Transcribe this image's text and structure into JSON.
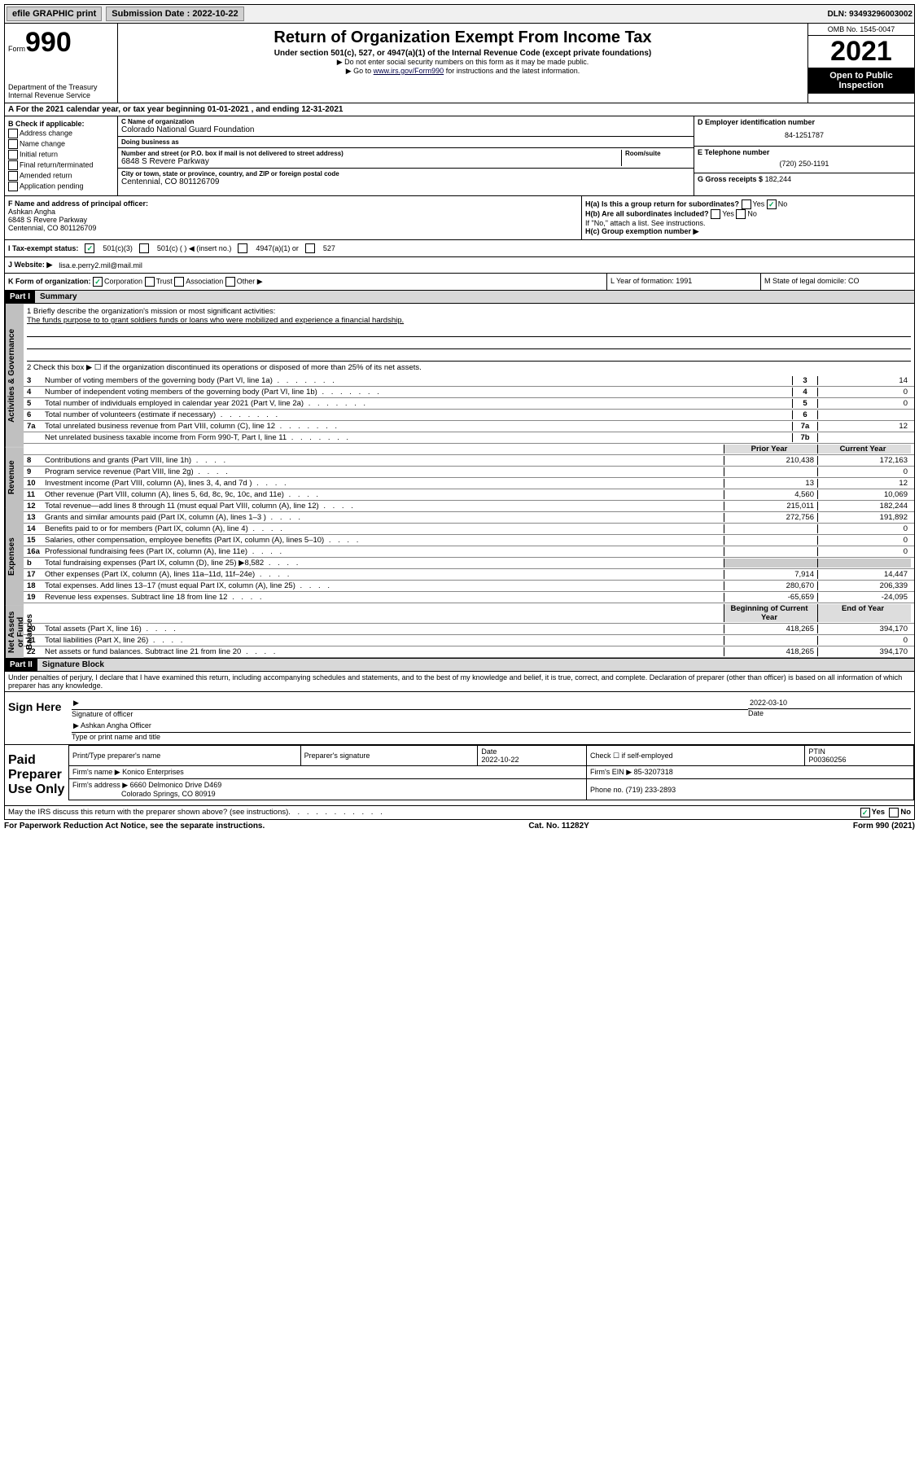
{
  "topbar": {
    "efile": "efile GRAPHIC print",
    "sub_label": "Submission Date : 2022-10-22",
    "dln": "DLN: 93493296003002"
  },
  "header": {
    "form_small": "Form",
    "form_big": "990",
    "title": "Return of Organization Exempt From Income Tax",
    "sub1": "Under section 501(c), 527, or 4947(a)(1) of the Internal Revenue Code (except private foundations)",
    "sub2": "▶ Do not enter social security numbers on this form as it may be made public.",
    "sub3_pre": "▶ Go to ",
    "sub3_link": "www.irs.gov/Form990",
    "sub3_post": " for instructions and the latest information.",
    "omb": "OMB No. 1545-0047",
    "year": "2021",
    "open": "Open to Public Inspection",
    "dept": "Department of the Treasury\nInternal Revenue Service"
  },
  "rowA": "A For the 2021 calendar year, or tax year beginning 01-01-2021   , and ending 12-31-2021",
  "colB": {
    "label": "B Check if applicable:",
    "items": [
      "Address change",
      "Name change",
      "Initial return",
      "Final return/terminated",
      "Amended return",
      "Application pending"
    ]
  },
  "colC": {
    "name_lbl": "C Name of organization",
    "name": "Colorado National Guard Foundation",
    "dba_lbl": "Doing business as",
    "dba": "",
    "street_lbl": "Number and street (or P.O. box if mail is not delivered to street address)",
    "room_lbl": "Room/suite",
    "street": "6848 S Revere Parkway",
    "city_lbl": "City or town, state or province, country, and ZIP or foreign postal code",
    "city": "Centennial, CO  801126709"
  },
  "colD": {
    "ein_lbl": "D Employer identification number",
    "ein": "84-1251787",
    "tel_lbl": "E Telephone number",
    "tel": "(720) 250-1191",
    "gross_lbl": "G Gross receipts $",
    "gross": "182,244"
  },
  "rowF": {
    "lbl": "F Name and address of principal officer:",
    "line1": "Ashkan Angha",
    "line2": "6848 S Revere Parkway",
    "line3": "Centennial, CO  801126709"
  },
  "rowH": {
    "ha": "H(a)  Is this a group return for subordinates?",
    "ha_yes": "Yes",
    "ha_no": "No",
    "hb": "H(b)  Are all subordinates included?",
    "hb_note": "If \"No,\" attach a list. See instructions.",
    "hc": "H(c)  Group exemption number ▶"
  },
  "rowI": {
    "lbl": "I   Tax-exempt status:",
    "opts": [
      "501(c)(3)",
      "501(c) (  ) ◀ (insert no.)",
      "4947(a)(1) or",
      "527"
    ]
  },
  "rowJ": {
    "lbl": "J   Website: ▶",
    "val": "lisa.e.perry2.mil@mail.mil"
  },
  "rowK": {
    "lbl": "K Form of organization:",
    "opts": [
      "Corporation",
      "Trust",
      "Association",
      "Other ▶"
    ],
    "L": "L Year of formation: 1991",
    "M": "M State of legal domicile: CO"
  },
  "partI": {
    "hdr": "Part I",
    "title": "Summary"
  },
  "mission": {
    "q1": "1   Briefly describe the organization's mission or most significant activities:",
    "text": "The funds purpose to to grant soldiers funds or loans who were mobilized and experience a financial hardship.",
    "q2": "2   Check this box ▶ ☐  if the organization discontinued its operations or disposed of more than 25% of its net assets."
  },
  "lines_gov": [
    {
      "n": "3",
      "d": "Number of voting members of the governing body (Part VI, line 1a)",
      "b": "3",
      "v": "14"
    },
    {
      "n": "4",
      "d": "Number of independent voting members of the governing body (Part VI, line 1b)",
      "b": "4",
      "v": "0"
    },
    {
      "n": "5",
      "d": "Total number of individuals employed in calendar year 2021 (Part V, line 2a)",
      "b": "5",
      "v": "0"
    },
    {
      "n": "6",
      "d": "Total number of volunteers (estimate if necessary)",
      "b": "6",
      "v": ""
    },
    {
      "n": "7a",
      "d": "Total unrelated business revenue from Part VIII, column (C), line 12",
      "b": "7a",
      "v": "12"
    },
    {
      "n": "",
      "d": "Net unrelated business taxable income from Form 990-T, Part I, line 11",
      "b": "7b",
      "v": ""
    }
  ],
  "col_hdr": {
    "b": "b",
    "py": "Prior Year",
    "cy": "Current Year"
  },
  "lines_rev": [
    {
      "n": "8",
      "d": "Contributions and grants (Part VIII, line 1h)",
      "py": "210,438",
      "cy": "172,163"
    },
    {
      "n": "9",
      "d": "Program service revenue (Part VIII, line 2g)",
      "py": "",
      "cy": "0"
    },
    {
      "n": "10",
      "d": "Investment income (Part VIII, column (A), lines 3, 4, and 7d )",
      "py": "13",
      "cy": "12"
    },
    {
      "n": "11",
      "d": "Other revenue (Part VIII, column (A), lines 5, 6d, 8c, 9c, 10c, and 11e)",
      "py": "4,560",
      "cy": "10,069"
    },
    {
      "n": "12",
      "d": "Total revenue—add lines 8 through 11 (must equal Part VIII, column (A), line 12)",
      "py": "215,011",
      "cy": "182,244"
    }
  ],
  "lines_exp": [
    {
      "n": "13",
      "d": "Grants and similar amounts paid (Part IX, column (A), lines 1–3 )",
      "py": "272,756",
      "cy": "191,892"
    },
    {
      "n": "14",
      "d": "Benefits paid to or for members (Part IX, column (A), line 4)",
      "py": "",
      "cy": "0"
    },
    {
      "n": "15",
      "d": "Salaries, other compensation, employee benefits (Part IX, column (A), lines 5–10)",
      "py": "",
      "cy": "0"
    },
    {
      "n": "16a",
      "d": "Professional fundraising fees (Part IX, column (A), line 11e)",
      "py": "",
      "cy": "0"
    },
    {
      "n": "b",
      "d": "Total fundraising expenses (Part IX, column (D), line 25) ▶8,582",
      "py": "grey",
      "cy": "grey"
    },
    {
      "n": "17",
      "d": "Other expenses (Part IX, column (A), lines 11a–11d, 11f–24e)",
      "py": "7,914",
      "cy": "14,447"
    },
    {
      "n": "18",
      "d": "Total expenses. Add lines 13–17 (must equal Part IX, column (A), line 25)",
      "py": "280,670",
      "cy": "206,339"
    },
    {
      "n": "19",
      "d": "Revenue less expenses. Subtract line 18 from line 12",
      "py": "-65,659",
      "cy": "-24,095"
    }
  ],
  "col_hdr2": {
    "py": "Beginning of Current Year",
    "cy": "End of Year"
  },
  "lines_net": [
    {
      "n": "20",
      "d": "Total assets (Part X, line 16)",
      "py": "418,265",
      "cy": "394,170"
    },
    {
      "n": "21",
      "d": "Total liabilities (Part X, line 26)",
      "py": "",
      "cy": "0"
    },
    {
      "n": "22",
      "d": "Net assets or fund balances. Subtract line 21 from line 20",
      "py": "418,265",
      "cy": "394,170"
    }
  ],
  "vtabs": {
    "gov": "Activities & Governance",
    "rev": "Revenue",
    "exp": "Expenses",
    "net": "Net Assets or Fund Balances"
  },
  "partII": {
    "hdr": "Part II",
    "title": "Signature Block"
  },
  "penalty": "Under penalties of perjury, I declare that I have examined this return, including accompanying schedules and statements, and to the best of my knowledge and belief, it is true, correct, and complete. Declaration of preparer (other than officer) is based on all information of which preparer has any knowledge.",
  "sign": {
    "here": "Sign Here",
    "sig_lbl": "Signature of officer",
    "date": "2022-03-10",
    "date_lbl": "Date",
    "name": "Ashkan Angha  Officer",
    "name_lbl": "Type or print name and title"
  },
  "prep": {
    "title": "Paid Preparer Use Only",
    "h1": "Print/Type preparer's name",
    "h2": "Preparer's signature",
    "h3": "Date",
    "h3v": "2022-10-22",
    "h4": "Check ☐ if self-employed",
    "h5": "PTIN",
    "h5v": "P00360256",
    "firm_lbl": "Firm's name    ▶",
    "firm": "Konico Enterprises",
    "ein_lbl": "Firm's EIN ▶",
    "ein": "85-3207318",
    "addr_lbl": "Firm's address ▶",
    "addr1": "6660 Delmonico Drive D469",
    "addr2": "Colorado Springs, CO  80919",
    "phone_lbl": "Phone no.",
    "phone": "(719) 233-2893"
  },
  "may": {
    "q": "May the IRS discuss this return with the preparer shown above? (see instructions)",
    "yes": "Yes",
    "no": "No"
  },
  "footer": {
    "l": "For Paperwork Reduction Act Notice, see the separate instructions.",
    "c": "Cat. No. 11282Y",
    "r": "Form 990 (2021)"
  }
}
